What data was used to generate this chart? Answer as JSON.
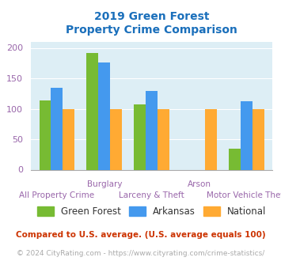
{
  "title_line1": "2019 Green Forest",
  "title_line2": "Property Crime Comparison",
  "title_color": "#1a6fbb",
  "categories": [
    "All Property Crime",
    "Burglary",
    "Larceny & Theft",
    "Arson",
    "Motor Vehicle Theft"
  ],
  "green_forest": [
    113,
    191,
    107,
    0,
    35
  ],
  "arkansas": [
    135,
    176,
    129,
    0,
    112
  ],
  "national": [
    100,
    100,
    100,
    100,
    100
  ],
  "gf_visible": [
    true,
    true,
    true,
    false,
    true
  ],
  "ar_visible": [
    true,
    true,
    true,
    false,
    true
  ],
  "bar_colors": {
    "green_forest": "#77bb33",
    "arkansas": "#4499ee",
    "national": "#ffaa33"
  },
  "ylim": [
    0,
    210
  ],
  "yticks": [
    0,
    50,
    100,
    150,
    200
  ],
  "bg_color": "#ddeef5",
  "legend_labels": [
    "Green Forest",
    "Arkansas",
    "National"
  ],
  "top_xlabels": {
    "1": "Burglary",
    "3": "Arson"
  },
  "bottom_xlabels": {
    "0": "All Property Crime",
    "2": "Larceny & Theft",
    "4": "Motor Vehicle Theft"
  },
  "footnote1": "Compared to U.S. average. (U.S. average equals 100)",
  "footnote2": "© 2024 CityRating.com - https://www.cityrating.com/crime-statistics/",
  "footnote1_color": "#cc3300",
  "footnote2_color": "#aaaaaa",
  "tick_label_color": "#9966aa",
  "legend_text_color": "#333333",
  "bar_width": 0.25
}
